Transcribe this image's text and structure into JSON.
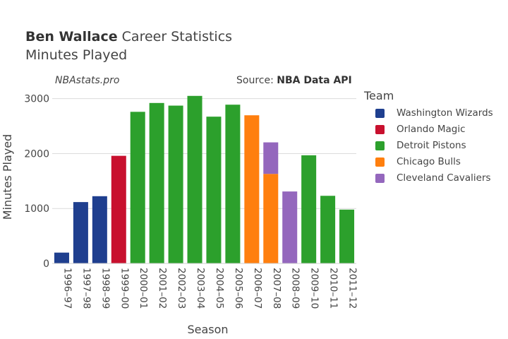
{
  "header": {
    "player": "Ben Wallace",
    "title_rest": "Career Statistics",
    "subtitle": "Minutes Played",
    "watermark": "NBAstats.pro",
    "source_prefix": "Source: ",
    "source_name": "NBA Data API"
  },
  "legend": {
    "title": "Team",
    "items": [
      {
        "label": "Washington Wizards",
        "color": "#1f3f8f"
      },
      {
        "label": "Orlando Magic",
        "color": "#c8102e"
      },
      {
        "label": "Detroit Pistons",
        "color": "#2ca02c"
      },
      {
        "label": "Chicago Bulls",
        "color": "#ff7f0e"
      },
      {
        "label": "Cleveland Cavaliers",
        "color": "#9467bd"
      }
    ]
  },
  "chart_data": {
    "type": "bar",
    "stacked": true,
    "xlabel": "Season",
    "ylabel": "Minutes Played",
    "ylim": [
      0,
      3150
    ],
    "yticks": [
      0,
      1000,
      2000,
      3000
    ],
    "grid": true,
    "legend_position": "right",
    "categories": [
      "1996–97",
      "1997–98",
      "1998–99",
      "1999–00",
      "2000–01",
      "2001–02",
      "2002–03",
      "2003–04",
      "2004–05",
      "2005–06",
      "2006–07",
      "2007–08",
      "2008–09",
      "2009–10",
      "2010–11",
      "2011–12"
    ],
    "series": [
      {
        "name": "Washington Wizards",
        "color": "#1f3f8f",
        "values": [
          197,
          1117,
          1224,
          0,
          0,
          0,
          0,
          0,
          0,
          0,
          0,
          0,
          0,
          0,
          0,
          0
        ]
      },
      {
        "name": "Orlando Magic",
        "color": "#c8102e",
        "values": [
          0,
          0,
          0,
          1959,
          0,
          0,
          0,
          0,
          0,
          0,
          0,
          0,
          0,
          0,
          0,
          0
        ]
      },
      {
        "name": "Detroit Pistons",
        "color": "#2ca02c",
        "values": [
          0,
          0,
          0,
          0,
          2760,
          2921,
          2873,
          3050,
          2672,
          2890,
          0,
          0,
          0,
          1969,
          1231,
          980
        ]
      },
      {
        "name": "Chicago Bulls",
        "color": "#ff7f0e",
        "values": [
          0,
          0,
          0,
          0,
          0,
          0,
          0,
          0,
          0,
          0,
          2697,
          1630,
          0,
          0,
          0,
          0
        ]
      },
      {
        "name": "Cleveland Cavaliers",
        "color": "#9467bd",
        "values": [
          0,
          0,
          0,
          0,
          0,
          0,
          0,
          0,
          0,
          0,
          0,
          574,
          1310,
          0,
          0,
          0
        ]
      }
    ]
  }
}
